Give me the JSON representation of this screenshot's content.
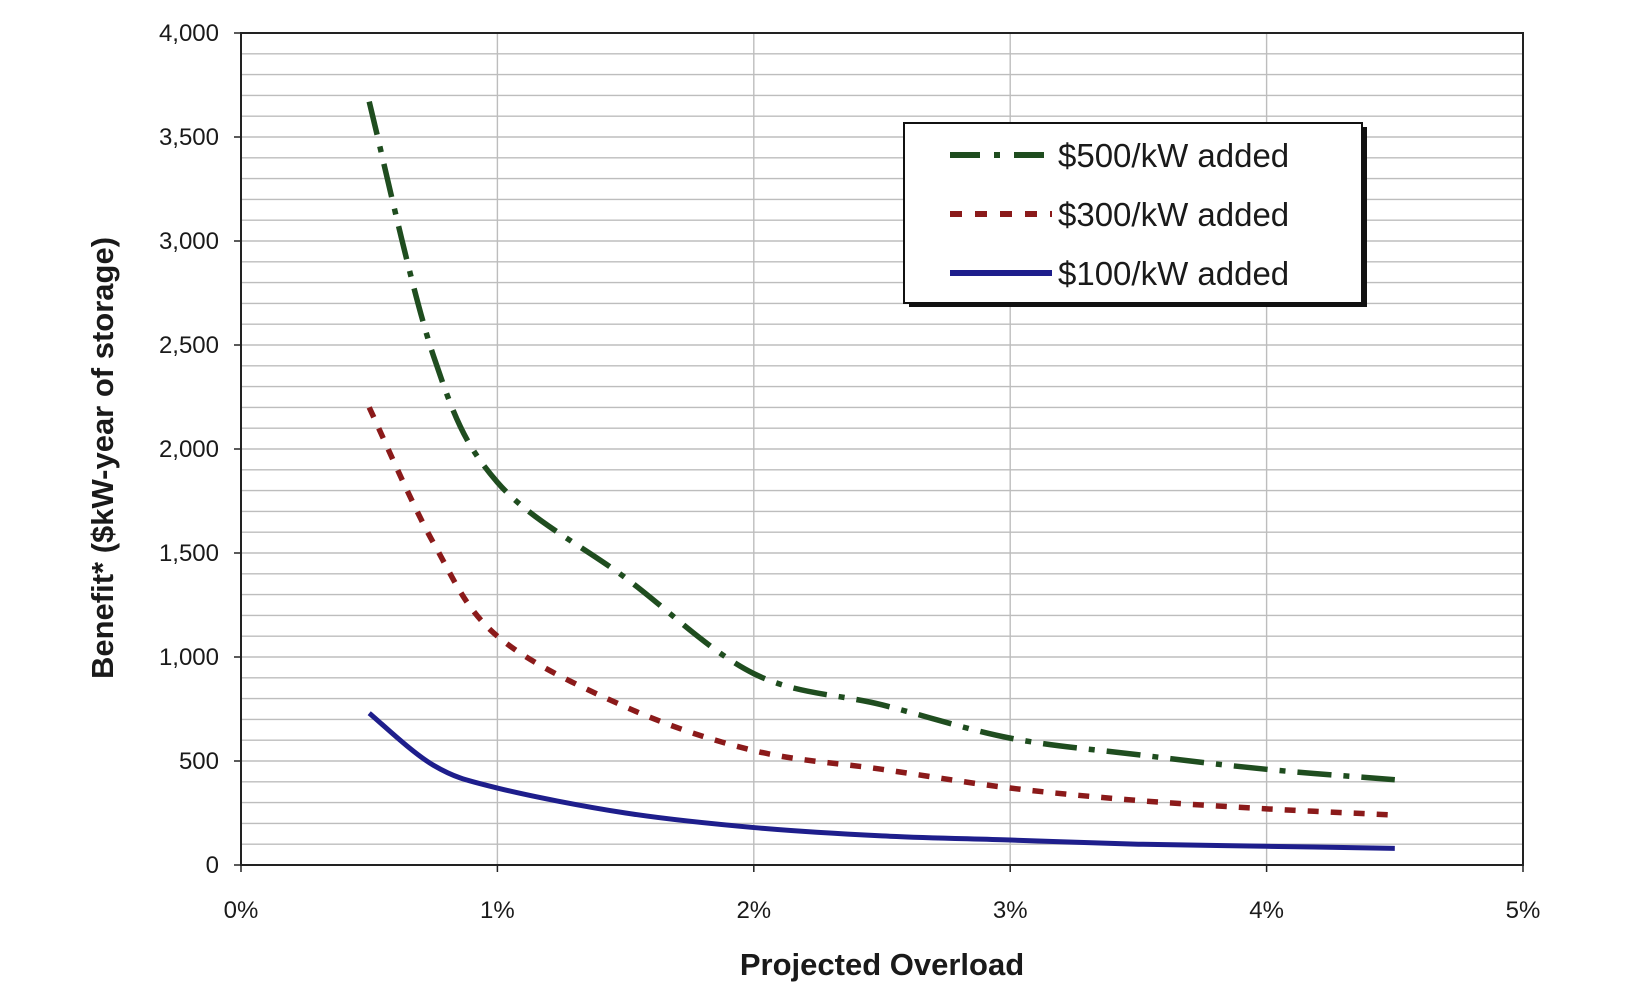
{
  "chart_data": {
    "type": "line",
    "xlabel": "Projected Overload",
    "ylabel": "Benefit* ($kW-year of storage)",
    "xlim": [
      0,
      5
    ],
    "ylim": [
      0,
      4000
    ],
    "x_unit": "%",
    "x_ticks": [
      0,
      1,
      2,
      3,
      4,
      5
    ],
    "x_tick_labels": [
      "0%",
      "1%",
      "2%",
      "3%",
      "4%",
      "5%"
    ],
    "y_ticks": [
      0,
      500,
      1000,
      1500,
      2000,
      2500,
      3000,
      3500,
      4000
    ],
    "y_tick_labels": [
      "0",
      "500",
      "1,000",
      "1,500",
      "2,000",
      "2,500",
      "3,000",
      "3,500",
      "4,000"
    ],
    "y_minor_step": 100,
    "grid": true,
    "legend_position": "top-right",
    "series": [
      {
        "name": "$500/kW added",
        "color": "#1f4d1f",
        "style": "dash-dot",
        "x": [
          0.5,
          0.75,
          1.0,
          1.5,
          2.0,
          2.5,
          3.0,
          3.5,
          4.0,
          4.5
        ],
        "y": [
          3670,
          2450,
          1840,
          1380,
          920,
          770,
          610,
          530,
          460,
          410
        ]
      },
      {
        "name": "$300/kW added",
        "color": "#8b1a1a",
        "style": "dotted",
        "x": [
          0.5,
          0.75,
          1.0,
          1.5,
          2.0,
          2.5,
          3.0,
          3.5,
          4.0,
          4.5
        ],
        "y": [
          2200,
          1550,
          1100,
          760,
          550,
          460,
          370,
          310,
          270,
          240
        ]
      },
      {
        "name": "$100/kW added",
        "color": "#1e1e8c",
        "style": "solid",
        "x": [
          0.5,
          0.75,
          1.0,
          1.5,
          2.0,
          2.5,
          3.0,
          3.5,
          4.0,
          4.5
        ],
        "y": [
          730,
          480,
          370,
          250,
          180,
          140,
          120,
          100,
          90,
          80
        ]
      }
    ]
  }
}
